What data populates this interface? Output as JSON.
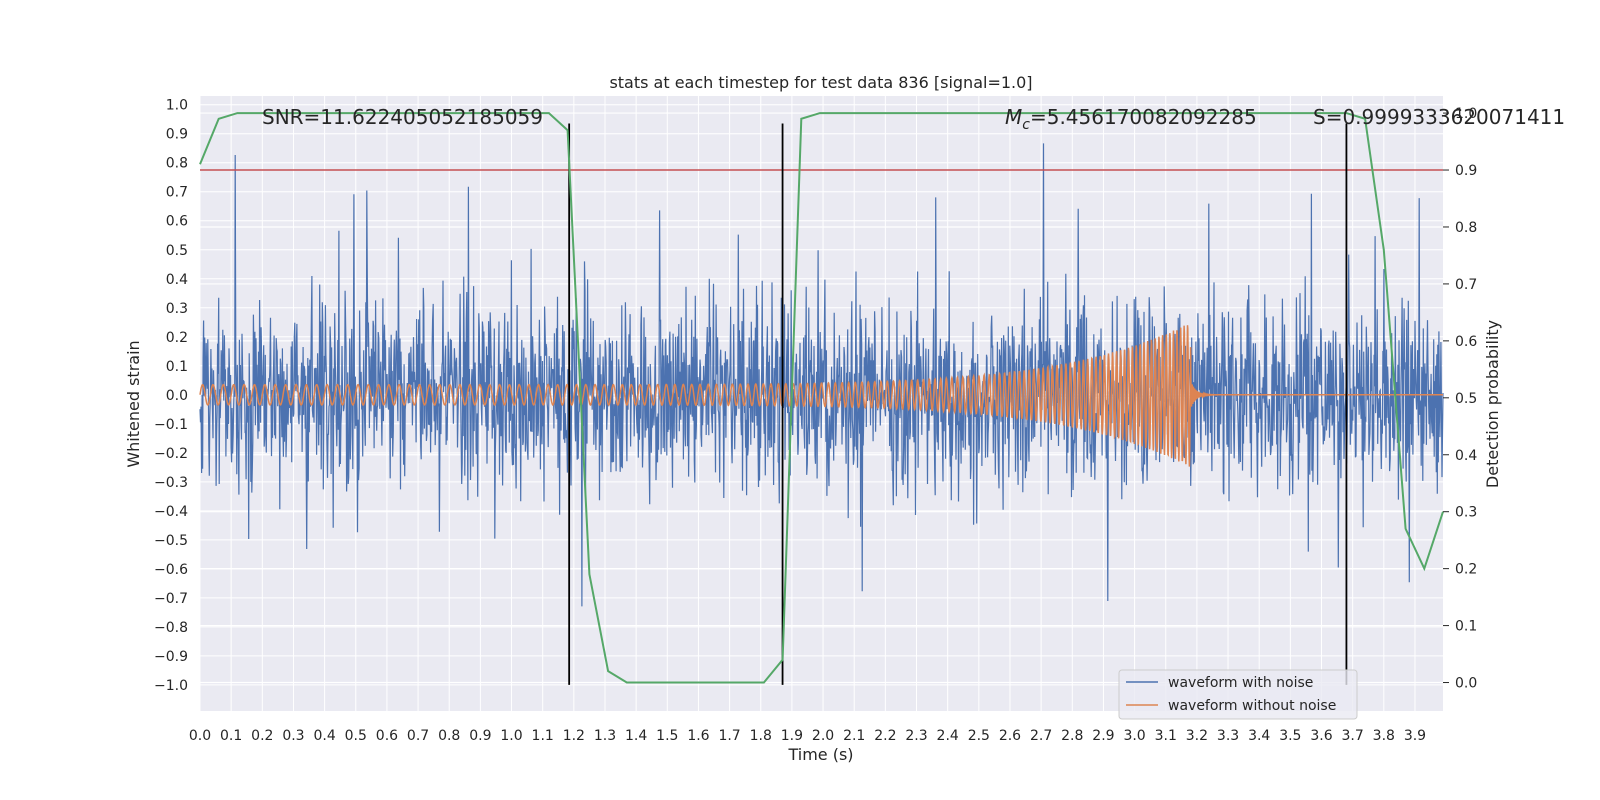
{
  "chart_data": {
    "type": "line",
    "title": "stats at each timestep for test data 836 [signal=1.0]",
    "xlabel": "Time (s)",
    "ylabel": "Whitened strain",
    "y2label": "Detection probability",
    "xlim": [
      0.0,
      3.99
    ],
    "ylim": [
      -1.09,
      1.03
    ],
    "y2lim": [
      -0.05,
      1.03
    ],
    "x_ticks": [
      0.0,
      0.1,
      0.2,
      0.3,
      0.4,
      0.5,
      0.6,
      0.7,
      0.8,
      0.9,
      1.0,
      1.1,
      1.2,
      1.3,
      1.4,
      1.5,
      1.6,
      1.7,
      1.8,
      1.9,
      2.0,
      2.1,
      2.2,
      2.3,
      2.4,
      2.5,
      2.6,
      2.7,
      2.8,
      2.9,
      3.0,
      3.1,
      3.2,
      3.3,
      3.4,
      3.5,
      3.6,
      3.7,
      3.8,
      3.9
    ],
    "y_ticks": [
      1.0,
      0.9,
      0.8,
      0.7,
      0.6,
      0.5,
      0.4,
      0.3,
      0.2,
      0.1,
      0.0,
      -0.1,
      -0.2,
      -0.3,
      -0.4,
      -0.5,
      -0.6,
      -0.7,
      -0.8,
      -0.9,
      -1.0
    ],
    "y2_ticks": [
      0.0,
      0.1,
      0.2,
      0.3,
      0.4,
      0.5,
      0.6,
      0.7,
      0.8,
      0.9,
      1.0
    ],
    "colors": {
      "noise": "#4c72b0",
      "clean": "#dd8452",
      "prob": "#55a868",
      "threshold": "#c44e52",
      "vline": "#000000",
      "grid": "#ffffff",
      "bg": "#eaeaf2"
    },
    "series": [
      {
        "name": "waveform with noise",
        "axis": "left",
        "style": "noise",
        "amplitude_note": "random, roughly ±0.4 with spikes to ±0.9"
      },
      {
        "name": "waveform without noise",
        "axis": "left",
        "style": "chirp",
        "x_start": 0.0,
        "x_merge": 3.18,
        "amp_start": 0.035,
        "amp_peak": 0.25,
        "freq_start": 30,
        "freq_end": 90
      },
      {
        "name": "detection probability",
        "axis": "right",
        "x": [
          0.0,
          0.06,
          0.12,
          0.18,
          0.25,
          0.5,
          0.75,
          1.0,
          1.12,
          1.18,
          1.25,
          1.31,
          1.37,
          1.43,
          1.5,
          1.62,
          1.75,
          1.81,
          1.87,
          1.93,
          1.99,
          2.25,
          2.5,
          2.75,
          3.0,
          3.25,
          3.5,
          3.62,
          3.68,
          3.74,
          3.8,
          3.87,
          3.93,
          3.99
        ],
        "y": [
          0.91,
          0.99,
          1.0,
          1.0,
          1.0,
          1.0,
          1.0,
          1.0,
          1.0,
          0.97,
          0.19,
          0.02,
          0.0,
          0.0,
          0.0,
          0.0,
          0.0,
          0.0,
          0.04,
          0.99,
          1.0,
          1.0,
          1.0,
          1.0,
          1.0,
          1.0,
          1.0,
          1.0,
          1.0,
          0.99,
          0.76,
          0.27,
          0.2,
          0.3
        ]
      }
    ],
    "threshold": {
      "axis": "right",
      "value": 0.9
    },
    "vlines": [
      1.185,
      1.87,
      3.68
    ],
    "vline_ymin": -1.0,
    "vline_ymax": 0.935,
    "annotations": {
      "snr": "SNR=11.622405052185059",
      "mc_prefix": "M",
      "mc_sub": "c",
      "mc_value": "=5.456170082092285",
      "s": "S=0.9999333620071411"
    },
    "legend": {
      "position": "lower-right",
      "entries": [
        "waveform with noise",
        "waveform without noise"
      ]
    }
  }
}
